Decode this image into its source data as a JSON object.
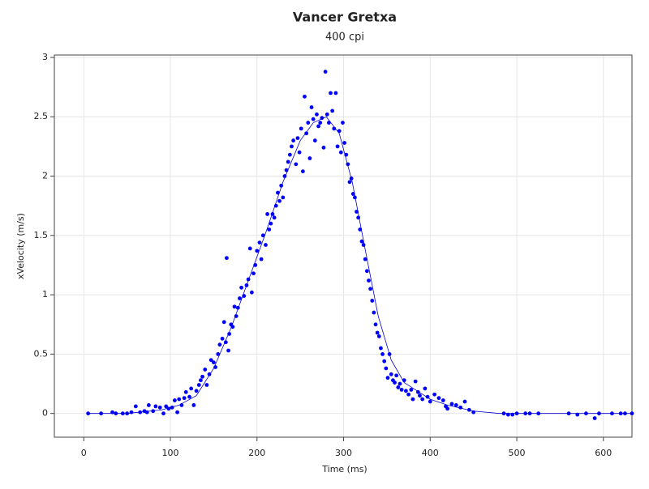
{
  "chart_data": {
    "type": "scatter",
    "title": "Vancer Gretxa",
    "subtitle": "400 cpi",
    "x_label": "Time (ms)",
    "y_label": "xVelocity (m/s)",
    "xlim": [
      -34,
      633
    ],
    "ylim": [
      -0.2,
      3.02
    ],
    "xticks": [
      0,
      100,
      200,
      300,
      400,
      500,
      600
    ],
    "yticks": [
      0,
      0.5,
      1,
      1.5,
      2,
      2.5,
      3
    ],
    "grid": true,
    "series": [
      {
        "kind": "points",
        "color": "#0000ff",
        "x": [
          5,
          20,
          33,
          37,
          45,
          50,
          55,
          60,
          65,
          70,
          73,
          75,
          80,
          83,
          88,
          92,
          95,
          98,
          102,
          105,
          108,
          110,
          113,
          116,
          118,
          122,
          124,
          127,
          130,
          133,
          135,
          137,
          140,
          142,
          145,
          147,
          150,
          152,
          155,
          157,
          160,
          162,
          164,
          165,
          167,
          168,
          170,
          172,
          174,
          176,
          178,
          180,
          182,
          185,
          188,
          190,
          192,
          194,
          196,
          198,
          200,
          203,
          205,
          207,
          210,
          212,
          214,
          216,
          218,
          220,
          222,
          224,
          226,
          228,
          230,
          232,
          234,
          236,
          238,
          240,
          242,
          245,
          247,
          249,
          251,
          253,
          255,
          257,
          259,
          261,
          263,
          265,
          267,
          269,
          271,
          273,
          275,
          277,
          279,
          281,
          283,
          285,
          287,
          289,
          291,
          293,
          295,
          297,
          299,
          301,
          303,
          305,
          307,
          309,
          311,
          313,
          315,
          317,
          319,
          321,
          323,
          325,
          327,
          329,
          331,
          333,
          335,
          337,
          339,
          341,
          343,
          345,
          347,
          349,
          351,
          353,
          355,
          357,
          359,
          361,
          363,
          365,
          367,
          370,
          372,
          375,
          378,
          380,
          383,
          386,
          388,
          391,
          394,
          397,
          400,
          405,
          410,
          415,
          418,
          420,
          425,
          430,
          435,
          440,
          445,
          450,
          485,
          490,
          495,
          500,
          510,
          515,
          525,
          560,
          570,
          580,
          590,
          595,
          610,
          620,
          625,
          633
        ],
        "values": [
          0,
          0,
          0.01,
          0,
          0,
          0,
          0.01,
          0.06,
          0.01,
          0.02,
          0.01,
          0.07,
          0.02,
          0.06,
          0.05,
          0,
          0.06,
          0.04,
          0.05,
          0.11,
          0.01,
          0.12,
          0.07,
          0.13,
          0.18,
          0.14,
          0.21,
          0.07,
          0.19,
          0.24,
          0.28,
          0.31,
          0.37,
          0.24,
          0.33,
          0.45,
          0.43,
          0.39,
          0.5,
          0.58,
          0.63,
          0.77,
          0.6,
          1.31,
          0.53,
          0.67,
          0.75,
          0.73,
          0.9,
          0.82,
          0.89,
          0.97,
          1.06,
          0.99,
          1.08,
          1.13,
          1.39,
          1.02,
          1.18,
          1.25,
          1.37,
          1.44,
          1.3,
          1.5,
          1.42,
          1.68,
          1.55,
          1.6,
          1.68,
          1.65,
          1.75,
          1.86,
          1.79,
          1.92,
          1.82,
          2.0,
          2.05,
          2.12,
          2.18,
          2.25,
          2.3,
          2.1,
          2.32,
          2.2,
          2.4,
          2.04,
          2.67,
          2.36,
          2.45,
          2.15,
          2.58,
          2.48,
          2.3,
          2.52,
          2.42,
          2.45,
          2.49,
          2.24,
          2.88,
          2.52,
          2.45,
          2.7,
          2.55,
          2.4,
          2.7,
          2.25,
          2.38,
          2.2,
          2.45,
          2.28,
          2.18,
          2.1,
          1.95,
          1.98,
          1.85,
          1.82,
          1.7,
          1.65,
          1.55,
          1.45,
          1.42,
          1.3,
          1.2,
          1.12,
          1.05,
          0.95,
          0.85,
          0.75,
          0.68,
          0.65,
          0.55,
          0.5,
          0.44,
          0.38,
          0.3,
          0.5,
          0.33,
          0.28,
          0.26,
          0.32,
          0.22,
          0.25,
          0.2,
          0.28,
          0.19,
          0.16,
          0.2,
          0.12,
          0.27,
          0.18,
          0.15,
          0.12,
          0.21,
          0.14,
          0.1,
          0.16,
          0.13,
          0.11,
          0.06,
          0.04,
          0.08,
          0.07,
          0.05,
          0.1,
          0.03,
          0.01,
          0,
          -0.01,
          -0.01,
          0,
          0,
          0,
          0,
          0,
          -0.01,
          0,
          -0.04,
          0,
          0,
          0,
          0,
          0
        ]
      },
      {
        "kind": "line",
        "color": "#0000cc",
        "x": [
          5,
          50,
          90,
          110,
          130,
          150,
          170,
          190,
          210,
          230,
          250,
          265,
          280,
          295,
          310,
          325,
          340,
          355,
          370,
          385,
          400,
          420,
          450,
          480,
          520,
          560,
          600,
          633
        ],
        "values": [
          0,
          0,
          0.03,
          0.07,
          0.15,
          0.38,
          0.72,
          1.12,
          1.52,
          1.95,
          2.3,
          2.45,
          2.5,
          2.36,
          1.95,
          1.38,
          0.82,
          0.45,
          0.26,
          0.19,
          0.12,
          0.07,
          0.02,
          0,
          0,
          0,
          0,
          0
        ]
      }
    ]
  }
}
